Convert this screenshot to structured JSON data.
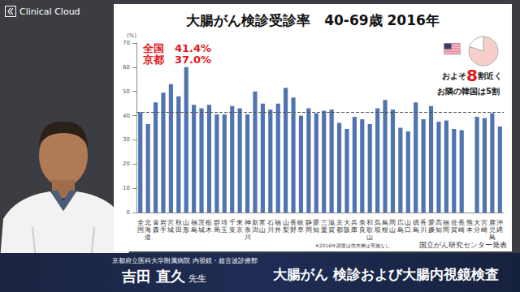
{
  "logo": "Clinical Cloud",
  "chart_data": [
    {
      "type": "bar",
      "title": "大腸がん検診受診率　40-69歳 2016年",
      "y_label": "(%)",
      "categories": [
        "全国",
        "北海道",
        "青森",
        "岩手",
        "宮城",
        "秋田",
        "山形",
        "福島",
        "茨城",
        "栃木",
        "群馬",
        "埼玉",
        "千葉",
        "東京",
        "神奈川",
        "新潟",
        "富山",
        "石川",
        "福井",
        "山梨",
        "長野",
        "岐阜",
        "静岡",
        "愛知",
        "三重",
        "滋賀",
        "京都",
        "大阪",
        "兵庫",
        "奈良",
        "和歌山",
        "鳥取",
        "島根",
        "岡山",
        "広島",
        "山口",
        "徳島",
        "香川",
        "愛媛",
        "高知",
        "福岡",
        "佐賀",
        "長崎",
        "熊本",
        "大分",
        "宮崎",
        "鹿児島",
        "沖縄"
      ],
      "values": [
        41.4,
        36.5,
        45.5,
        49.5,
        53.0,
        48.0,
        60.0,
        44.5,
        43.0,
        44.5,
        40.5,
        40.5,
        44.0,
        43.0,
        40.5,
        50.0,
        45.0,
        42.5,
        45.0,
        51.5,
        47.5,
        40.0,
        43.0,
        41.0,
        42.0,
        42.5,
        37.0,
        34.5,
        39.5,
        38.5,
        36.5,
        43.0,
        46.5,
        42.5,
        35.0,
        33.5,
        45.5,
        38.5,
        44.0,
        37.5,
        38.0,
        34.5,
        34.0,
        null,
        39.5,
        39.0,
        41.0,
        35.5
      ],
      "color": "#4f74b0",
      "ylim": [
        0,
        70
      ],
      "yticks": [
        0,
        10,
        20,
        30,
        40,
        50,
        60,
        70
      ],
      "grid": false,
      "reference_line": {
        "value": 41.4,
        "line_style": "dashed"
      },
      "annotations": [
        "全国　41.4%",
        "京都　37.0%"
      ],
      "footnote": "※2016年調査は熊本県は実施なし",
      "source": "国立がん研究センター発表"
    },
    {
      "type": "pie",
      "categories": [
        null,
        null
      ],
      "values": [
        80,
        20
      ],
      "colors": [
        "#f6cfcb",
        "#ffffff"
      ],
      "annotation_parts": [
        "およそ",
        "8",
        "割近く"
      ],
      "note": "お隣の韓国は5割"
    }
  ],
  "caption": {
    "affiliation": "京都府立医科大学附属病院 内視鏡・超音波診療部",
    "name": "吉田 直久",
    "honorific": "先生",
    "topic": "大腸がん 検診および大腸内視鏡検査"
  }
}
